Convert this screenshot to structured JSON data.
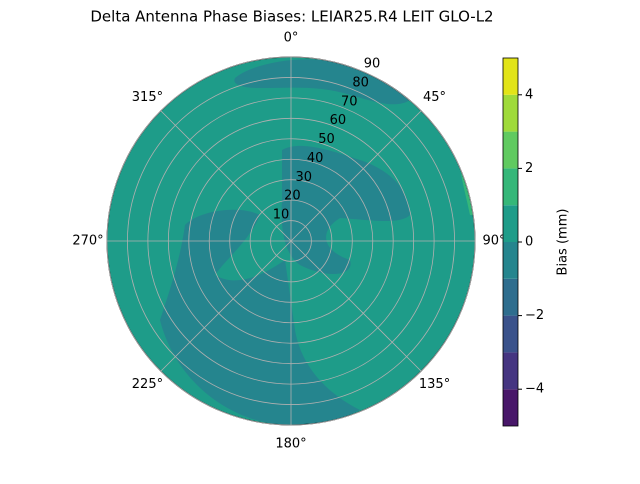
{
  "chart_data": {
    "type": "polar-contour",
    "title": "Delta Antenna Phase Biases: LEIAR25.R4      LEIT GLO-L2",
    "colorbar_label": "Bias (mm)",
    "levels": [
      -5,
      -4,
      -3,
      -2,
      -1,
      0,
      1,
      2,
      3,
      4,
      5
    ],
    "colors": [
      "#481769",
      "#453581",
      "#3a528b",
      "#2e6d8e",
      "#25858e",
      "#1e9c89",
      "#35b779",
      "#60ca60",
      "#9fda3a",
      "#e2e418"
    ],
    "thetaticks": [
      {
        "value": 0,
        "label": "0°"
      },
      {
        "value": 45,
        "label": "45°"
      },
      {
        "value": 90,
        "label": "90°"
      },
      {
        "value": 135,
        "label": "135°"
      },
      {
        "value": 180,
        "label": "180°"
      },
      {
        "value": 225,
        "label": "225°"
      },
      {
        "value": 270,
        "label": "270°"
      },
      {
        "value": 315,
        "label": "315°"
      }
    ],
    "rlim": [
      0,
      90
    ],
    "rticks": [
      10,
      20,
      30,
      40,
      50,
      60,
      70,
      80,
      90
    ],
    "clim": [
      -5,
      5
    ],
    "cticks": [
      {
        "value": -4,
        "label": "−4"
      },
      {
        "value": -2,
        "label": "−2"
      },
      0,
      2,
      4
    ],
    "grid": true
  }
}
